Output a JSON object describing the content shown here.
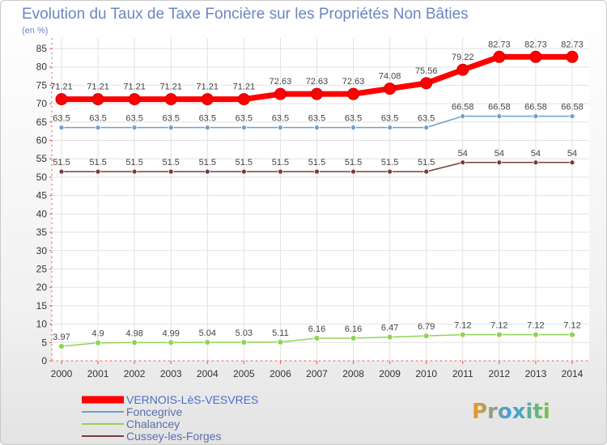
{
  "chart_data": {
    "type": "line",
    "title": "Evolution du Taux de Taxe Foncière sur les Propriétés Non Bâties",
    "subtitle": "(en %)",
    "xlabel": "",
    "ylabel": "(en %)",
    "ylim": [
      0,
      85
    ],
    "yticks": [
      0,
      5,
      10,
      15,
      20,
      25,
      30,
      35,
      40,
      45,
      50,
      55,
      60,
      65,
      70,
      75,
      80,
      85
    ],
    "x": [
      2000,
      2001,
      2002,
      2003,
      2004,
      2005,
      2006,
      2007,
      2008,
      2009,
      2010,
      2011,
      2012,
      2013,
      2014
    ],
    "grid": true,
    "series": [
      {
        "name": "VERNOIS-LèS-VESVRES",
        "color": "#ff0000",
        "values": [
          71.21,
          71.21,
          71.21,
          71.21,
          71.21,
          71.21,
          72.63,
          72.63,
          72.63,
          74.08,
          75.56,
          79.22,
          82.73,
          82.73,
          82.73
        ],
        "labels": [
          "71.21",
          "71.21",
          "71.21",
          "71.21",
          "71.21",
          "71.21",
          "72.63",
          "72.63",
          "72.63",
          "74.08",
          "75.56",
          "79.22",
          "82.73",
          "82.73",
          "82.73"
        ]
      },
      {
        "name": "Foncegrive",
        "color": "#6f9fd0",
        "values": [
          63.5,
          63.5,
          63.5,
          63.5,
          63.5,
          63.5,
          63.5,
          63.5,
          63.5,
          63.5,
          63.5,
          66.58,
          66.58,
          66.58,
          66.58
        ],
        "labels": [
          "63.5",
          "63.5",
          "63.5",
          "63.5",
          "63.5",
          "63.5",
          "63.5",
          "63.5",
          "63.5",
          "63.5",
          "63.5",
          "66.58",
          "66.58",
          "66.58",
          "66.58"
        ]
      },
      {
        "name": "Chalancey",
        "color": "#8fd455",
        "values": [
          3.97,
          4.9,
          4.98,
          4.99,
          5.04,
          5.03,
          5.11,
          6.16,
          6.16,
          6.47,
          6.79,
          7.12,
          7.12,
          7.12,
          7.12
        ],
        "labels": [
          "3.97",
          "4.9",
          "4.98",
          "4.99",
          "5.04",
          "5.03",
          "5.11",
          "6.16",
          "6.16",
          "6.47",
          "6.79",
          "7.12",
          "7.12",
          "7.12",
          "7.12"
        ]
      },
      {
        "name": "Cussey-les-Forges",
        "color": "#7a3a3a",
        "values": [
          51.5,
          51.5,
          51.5,
          51.5,
          51.5,
          51.5,
          51.5,
          51.5,
          51.5,
          51.5,
          51.5,
          54,
          54,
          54,
          54
        ],
        "labels": [
          "51.5",
          "51.5",
          "51.5",
          "51.5",
          "51.5",
          "51.5",
          "51.5",
          "51.5",
          "51.5",
          "51.5",
          "51.5",
          "54",
          "54",
          "54",
          "54"
        ]
      }
    ],
    "legend": {
      "position": "bottom-left"
    }
  },
  "logo": {
    "text": "Proxiti"
  }
}
